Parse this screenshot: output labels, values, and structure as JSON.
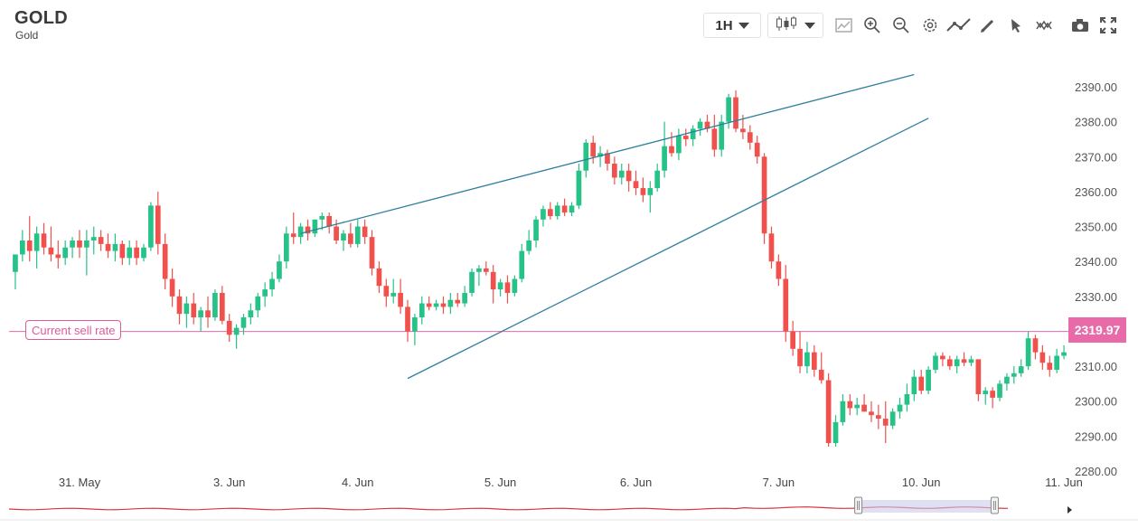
{
  "header": {
    "symbol": "GOLD",
    "name": "Gold"
  },
  "toolbar": {
    "interval": "1H",
    "icons": [
      "candlestick-icon",
      "compare-icon",
      "zoom-in-icon",
      "zoom-out-icon",
      "settings-icon",
      "indicator-line-icon",
      "pencil-icon",
      "cursor-icon",
      "pattern-icon",
      "camera-icon",
      "fullscreen-icon"
    ]
  },
  "current_price": {
    "label": "Current sell rate",
    "value": "2319.97",
    "price": 2319.97,
    "color": "#e86aa8"
  },
  "colors": {
    "up": "#26c287",
    "down": "#f0514d",
    "trendline": "#2e7f9c",
    "price_line": "#e86aa8",
    "navigator": "#d9363e"
  },
  "chart_data": {
    "type": "candlestick",
    "title": "",
    "xlabel": "",
    "ylabel": "",
    "ylim": [
      2280,
      2395
    ],
    "y_ticks": [
      "2390.00",
      "2380.00",
      "2370.00",
      "2360.00",
      "2350.00",
      "2340.00",
      "2330.00",
      "2320.00",
      "2310.00",
      "2300.00",
      "2290.00",
      "2280.00"
    ],
    "y_tick_values": [
      2390,
      2380,
      2370,
      2360,
      2350,
      2340,
      2330,
      2320,
      2310,
      2300,
      2290,
      2280
    ],
    "x_ticks": [
      "31. May",
      "3. Jun",
      "4. Jun",
      "5. Jun",
      "6. Jun",
      "7. Jun",
      "10. Jun",
      "11. Jun"
    ],
    "grid": false,
    "candles": [
      [
        2337,
        2342,
        2332,
        2342
      ],
      [
        2342,
        2349,
        2340,
        2346
      ],
      [
        2346,
        2353,
        2340,
        2343
      ],
      [
        2343,
        2350,
        2338,
        2348
      ],
      [
        2348,
        2351,
        2342,
        2344
      ],
      [
        2344,
        2350,
        2340,
        2342
      ],
      [
        2342,
        2346,
        2338,
        2341
      ],
      [
        2341,
        2346,
        2339,
        2344
      ],
      [
        2344,
        2347,
        2341,
        2346
      ],
      [
        2346,
        2349,
        2341,
        2344
      ],
      [
        2344,
        2349,
        2336,
        2346
      ],
      [
        2346,
        2350,
        2342,
        2347
      ],
      [
        2347,
        2349,
        2343,
        2345
      ],
      [
        2345,
        2348,
        2341,
        2343
      ],
      [
        2343,
        2348,
        2340,
        2345
      ],
      [
        2345,
        2346,
        2339,
        2341
      ],
      [
        2341,
        2346,
        2339,
        2344
      ],
      [
        2344,
        2346,
        2339,
        2341
      ],
      [
        2341,
        2345,
        2340,
        2344
      ],
      [
        2344,
        2357,
        2343,
        2356
      ],
      [
        2356,
        2360,
        2342,
        2345
      ],
      [
        2345,
        2348,
        2332,
        2335
      ],
      [
        2335,
        2338,
        2327,
        2330
      ],
      [
        2330,
        2332,
        2322,
        2325
      ],
      [
        2325,
        2330,
        2321,
        2328
      ],
      [
        2328,
        2331,
        2322,
        2324
      ],
      [
        2324,
        2327,
        2320,
        2326
      ],
      [
        2326,
        2330,
        2321,
        2324
      ],
      [
        2324,
        2332,
        2323,
        2331
      ],
      [
        2331,
        2333,
        2322,
        2323
      ],
      [
        2323,
        2325,
        2317,
        2319
      ],
      [
        2319,
        2322,
        2315,
        2321
      ],
      [
        2321,
        2325,
        2319,
        2324
      ],
      [
        2324,
        2328,
        2322,
        2326
      ],
      [
        2326,
        2331,
        2324,
        2330
      ],
      [
        2330,
        2334,
        2327,
        2332
      ],
      [
        2332,
        2337,
        2330,
        2335
      ],
      [
        2335,
        2342,
        2334,
        2340
      ],
      [
        2340,
        2350,
        2338,
        2348
      ],
      [
        2348,
        2354,
        2345,
        2347
      ],
      [
        2347,
        2351,
        2345,
        2350
      ],
      [
        2350,
        2352,
        2346,
        2348
      ],
      [
        2348,
        2352,
        2347,
        2352
      ],
      [
        2352,
        2354,
        2349,
        2353
      ],
      [
        2353,
        2354,
        2348,
        2350
      ],
      [
        2350,
        2352,
        2345,
        2346
      ],
      [
        2346,
        2349,
        2343,
        2348
      ],
      [
        2348,
        2351,
        2344,
        2345
      ],
      [
        2345,
        2352,
        2344,
        2350
      ],
      [
        2350,
        2352,
        2345,
        2347
      ],
      [
        2347,
        2349,
        2336,
        2338
      ],
      [
        2338,
        2340,
        2331,
        2333
      ],
      [
        2333,
        2335,
        2327,
        2330
      ],
      [
        2330,
        2335,
        2328,
        2331
      ],
      [
        2331,
        2335,
        2325,
        2327
      ],
      [
        2327,
        2329,
        2317,
        2320
      ],
      [
        2320,
        2325,
        2316,
        2324
      ],
      [
        2324,
        2330,
        2322,
        2328
      ],
      [
        2328,
        2330,
        2326,
        2327
      ],
      [
        2327,
        2329,
        2326,
        2328
      ],
      [
        2328,
        2330,
        2325,
        2327
      ],
      [
        2327,
        2331,
        2325,
        2329
      ],
      [
        2329,
        2331,
        2327,
        2328
      ],
      [
        2328,
        2333,
        2327,
        2331
      ],
      [
        2331,
        2338,
        2330,
        2337
      ],
      [
        2337,
        2339,
        2333,
        2338
      ],
      [
        2338,
        2340,
        2336,
        2337
      ],
      [
        2337,
        2339,
        2328,
        2332
      ],
      [
        2332,
        2335,
        2330,
        2334
      ],
      [
        2334,
        2336,
        2328,
        2331
      ],
      [
        2331,
        2336,
        2330,
        2335
      ],
      [
        2335,
        2345,
        2334,
        2343
      ],
      [
        2343,
        2349,
        2342,
        2346
      ],
      [
        2346,
        2353,
        2344,
        2352
      ],
      [
        2352,
        2356,
        2350,
        2355
      ],
      [
        2355,
        2357,
        2352,
        2353
      ],
      [
        2353,
        2357,
        2352,
        2356
      ],
      [
        2356,
        2358,
        2353,
        2354
      ],
      [
        2354,
        2357,
        2353,
        2356
      ],
      [
        2356,
        2368,
        2355,
        2366
      ],
      [
        2366,
        2375,
        2364,
        2374
      ],
      [
        2374,
        2376,
        2368,
        2370
      ],
      [
        2370,
        2373,
        2367,
        2371
      ],
      [
        2371,
        2372,
        2366,
        2368
      ],
      [
        2368,
        2370,
        2362,
        2364
      ],
      [
        2364,
        2368,
        2362,
        2366
      ],
      [
        2366,
        2368,
        2360,
        2363
      ],
      [
        2363,
        2366,
        2359,
        2361
      ],
      [
        2361,
        2364,
        2357,
        2359
      ],
      [
        2359,
        2363,
        2354,
        2361
      ],
      [
        2361,
        2368,
        2360,
        2366
      ],
      [
        2366,
        2380,
        2364,
        2373
      ],
      [
        2373,
        2377,
        2370,
        2371
      ],
      [
        2371,
        2378,
        2369,
        2376
      ],
      [
        2376,
        2378,
        2373,
        2375
      ],
      [
        2375,
        2379,
        2373,
        2378
      ],
      [
        2378,
        2381,
        2376,
        2380
      ],
      [
        2380,
        2382,
        2377,
        2378
      ],
      [
        2378,
        2382,
        2370,
        2372
      ],
      [
        2372,
        2382,
        2370,
        2380
      ],
      [
        2380,
        2388,
        2378,
        2387
      ],
      [
        2387,
        2389,
        2377,
        2378
      ],
      [
        2378,
        2382,
        2375,
        2377
      ],
      [
        2377,
        2379,
        2372,
        2374
      ],
      [
        2374,
        2376,
        2368,
        2370
      ],
      [
        2370,
        2371,
        2345,
        2348
      ],
      [
        2348,
        2350,
        2338,
        2340
      ],
      [
        2340,
        2342,
        2333,
        2335
      ],
      [
        2335,
        2339,
        2317,
        2320
      ],
      [
        2320,
        2323,
        2313,
        2315
      ],
      [
        2315,
        2320,
        2308,
        2310
      ],
      [
        2310,
        2317,
        2308,
        2314
      ],
      [
        2314,
        2316,
        2307,
        2309
      ],
      [
        2309,
        2314,
        2305,
        2306
      ],
      [
        2306,
        2308,
        2287,
        2288
      ],
      [
        2288,
        2296,
        2287,
        2294
      ],
      [
        2294,
        2302,
        2293,
        2300
      ],
      [
        2300,
        2302,
        2296,
        2298
      ],
      [
        2298,
        2301,
        2296,
        2299
      ],
      [
        2299,
        2302,
        2297,
        2297
      ],
      [
        2297,
        2300,
        2294,
        2296
      ],
      [
        2296,
        2299,
        2292,
        2295
      ],
      [
        2295,
        2300,
        2288,
        2293
      ],
      [
        2293,
        2298,
        2292,
        2297
      ],
      [
        2297,
        2301,
        2295,
        2299
      ],
      [
        2299,
        2305,
        2297,
        2302
      ],
      [
        2302,
        2309,
        2300,
        2307
      ],
      [
        2307,
        2309,
        2302,
        2303
      ],
      [
        2303,
        2310,
        2302,
        2309
      ],
      [
        2309,
        2314,
        2308,
        2313
      ],
      [
        2313,
        2314,
        2310,
        2312
      ],
      [
        2312,
        2313,
        2309,
        2310
      ],
      [
        2310,
        2313,
        2308,
        2312
      ],
      [
        2312,
        2314,
        2310,
        2311
      ],
      [
        2311,
        2313,
        2310,
        2312
      ],
      [
        2312,
        2311,
        2300,
        2302
      ],
      [
        2302,
        2304,
        2299,
        2303
      ],
      [
        2303,
        2304,
        2298,
        2301
      ],
      [
        2301,
        2306,
        2300,
        2305
      ],
      [
        2305,
        2308,
        2303,
        2307
      ],
      [
        2307,
        2310,
        2305,
        2308
      ],
      [
        2308,
        2312,
        2307,
        2310
      ],
      [
        2310,
        2320,
        2309,
        2318
      ],
      [
        2318,
        2319,
        2312,
        2314
      ],
      [
        2314,
        2316,
        2309,
        2311
      ],
      [
        2311,
        2313,
        2307,
        2309
      ],
      [
        2309,
        2315,
        2308,
        2313
      ],
      [
        2313,
        2316,
        2312,
        2314
      ]
    ],
    "x_tick_candle_index": [
      9,
      30,
      48,
      68,
      87,
      107,
      127,
      147
    ],
    "trendlines": [
      {
        "from": [
          3,
          2348.0
        ],
        "to": [
          11,
          2393.5
        ]
      },
      {
        "from": [
          4,
          2306.5
        ],
        "to": [
          11.1,
          2381.0
        ]
      }
    ],
    "trendline_day_offsets": [
      3,
      4,
      11,
      11.1
    ]
  },
  "navigator": {
    "range_start": 0.81,
    "range_end": 0.94
  }
}
